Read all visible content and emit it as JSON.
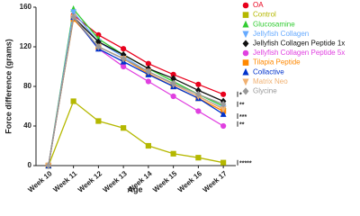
{
  "chart_data": {
    "type": "line",
    "y_label": "Force difference (grams)",
    "x_label": "Age",
    "categories": [
      "Week 10",
      "Week 11",
      "Week 12",
      "Week 13",
      "Week 14",
      "Week 15",
      "Week 16",
      "Week 17"
    ],
    "ylim": [
      0,
      160
    ],
    "yticks": [
      0,
      40,
      80,
      120,
      160
    ],
    "annotations": [
      "*",
      "**",
      "***",
      "**",
      "*****"
    ],
    "series": [
      {
        "name": "OA",
        "color": "#e8001c",
        "marker": "circle",
        "values": [
          0,
          152,
          132,
          118,
          103,
          92,
          82,
          72
        ]
      },
      {
        "name": "Control",
        "color": "#b5b800",
        "marker": "square",
        "values": [
          0,
          65,
          45,
          38,
          20,
          12,
          8,
          3
        ]
      },
      {
        "name": "Glucosamine",
        "color": "#33cc33",
        "marker": "triangle",
        "values": [
          0,
          158,
          128,
          112,
          98,
          85,
          72,
          60
        ]
      },
      {
        "name": "Jellyfish Collagen",
        "color": "#66aaff",
        "marker": "triangle-down",
        "values": [
          0,
          155,
          125,
          110,
          95,
          82,
          70,
          58
        ]
      },
      {
        "name": "Jellyfish Collagen Peptide 1x",
        "color": "#111111",
        "marker": "diamond",
        "values": [
          0,
          150,
          125,
          112,
          98,
          88,
          76,
          65
        ]
      },
      {
        "name": "Jellyfish Collagen Peptide 5x",
        "color": "#e040e0",
        "marker": "circle",
        "values": [
          0,
          150,
          118,
          100,
          85,
          70,
          55,
          40
        ]
      },
      {
        "name": "Tilapia Peptide",
        "color": "#ff8800",
        "marker": "square",
        "values": [
          0,
          148,
          120,
          108,
          93,
          80,
          68,
          55
        ]
      },
      {
        "name": "Collactive",
        "color": "#0033cc",
        "marker": "triangle",
        "values": [
          0,
          150,
          118,
          105,
          92,
          80,
          68,
          52
        ]
      },
      {
        "name": "Matrix Neo",
        "color": "#f0b070",
        "marker": "triangle-down",
        "values": [
          0,
          150,
          120,
          108,
          95,
          82,
          70,
          57
        ]
      },
      {
        "name": "Glycine",
        "color": "#999999",
        "marker": "diamond",
        "values": [
          0,
          150,
          120,
          108,
          95,
          83,
          72,
          62
        ]
      }
    ]
  }
}
